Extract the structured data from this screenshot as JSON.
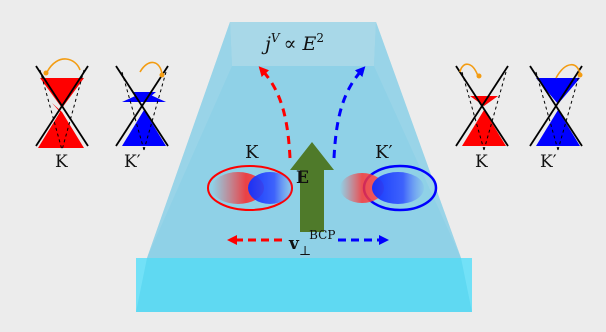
{
  "equation": {
    "j": "j",
    "j_sup": "V",
    "propto": "∝ E",
    "e_sup": "2"
  },
  "field": {
    "label": "E"
  },
  "velocity": {
    "base": "v",
    "sub": "⊥",
    "sup": "BCP"
  },
  "valleys": {
    "left": {
      "k": "K",
      "kprime": "K′"
    },
    "right": {
      "k": "K",
      "kprime": "K′"
    },
    "center_k": "K",
    "center_kprime": "K′"
  },
  "colors": {
    "background": "#ececec",
    "slab_top": "#a8d8e8",
    "slab_body": "#7fcde6",
    "base_block": "#5fd9f2",
    "k_valley": "#ff0000",
    "kprime_valley": "#0000ff",
    "field_arrow": "#4f7a2a",
    "hop_arrow": "#f39c12"
  }
}
